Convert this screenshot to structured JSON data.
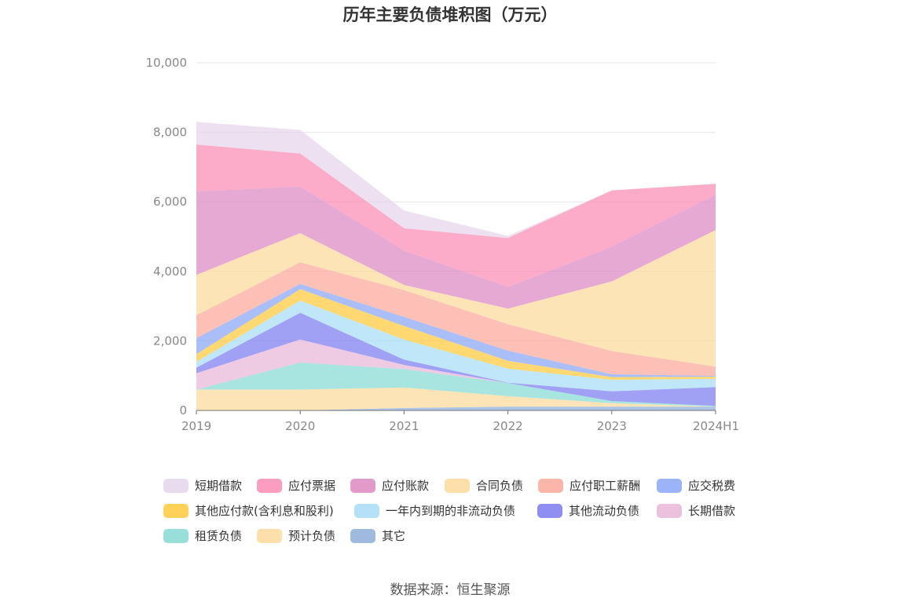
{
  "chart_data": {
    "type": "area",
    "stacked": true,
    "title": "历年主要负债堆积图（万元）",
    "categories": [
      "2019",
      "2020",
      "2021",
      "2022",
      "2023",
      "2024H1"
    ],
    "ylim": [
      0,
      10000
    ],
    "yticks": [
      "0",
      "2,000",
      "4,000",
      "6,000",
      "8,000",
      "10,000"
    ],
    "ytick_values": [
      0,
      2000,
      4000,
      6000,
      8000,
      10000
    ],
    "grid": true,
    "legend_position": "bottom",
    "series": [
      {
        "name": "其它",
        "color": "#8fadd9",
        "values": [
          0,
          0,
          70,
          110,
          110,
          110
        ]
      },
      {
        "name": "预计负债",
        "color": "#fcd99a",
        "values": [
          600,
          600,
          590,
          300,
          100,
          0
        ]
      },
      {
        "name": "租赁负债",
        "color": "#86d9d4",
        "values": [
          0,
          780,
          530,
          380,
          60,
          20
        ]
      },
      {
        "name": "长期借款",
        "color": "#e8b6d8",
        "values": [
          470,
          660,
          120,
          0,
          0,
          0
        ]
      },
      {
        "name": "其他流动负债",
        "color": "#7b7bf0",
        "values": [
          160,
          770,
          150,
          10,
          280,
          540
        ]
      },
      {
        "name": "一年内到期的非流动负债",
        "color": "#a8dcf7",
        "values": [
          170,
          350,
          580,
          400,
          330,
          240
        ]
      },
      {
        "name": "其他应付款(含利息和股利)",
        "color": "#ffc93c",
        "values": [
          220,
          330,
          390,
          230,
          80,
          60
        ]
      },
      {
        "name": "应交税费",
        "color": "#89a6f7",
        "values": [
          460,
          150,
          260,
          290,
          80,
          20
        ]
      },
      {
        "name": "应付职工薪酬",
        "color": "#fca89a",
        "values": [
          660,
          620,
          770,
          760,
          670,
          270
        ]
      },
      {
        "name": "合同负债",
        "color": "#fcd99a",
        "values": [
          1160,
          840,
          150,
          450,
          2000,
          3930
        ]
      },
      {
        "name": "应付账款",
        "color": "#dd88c2",
        "values": [
          2400,
          1340,
          990,
          620,
          1000,
          1010
        ]
      },
      {
        "name": "应付票据",
        "color": "#fb8bb4",
        "values": [
          1350,
          950,
          640,
          1410,
          1620,
          320
        ]
      },
      {
        "name": "短期借款",
        "color": "#e4d4ec",
        "values": [
          650,
          680,
          510,
          60,
          0,
          0
        ]
      }
    ],
    "legend": [
      "短期借款",
      "应付票据",
      "应付账款",
      "合同负债",
      "应付职工薪酬",
      "应交税费",
      "其他应付款(含利息和股利)",
      "一年内到期的非流动负债",
      "其他流动负债",
      "长期借款",
      "租赁负债",
      "预计负债",
      "其它"
    ]
  },
  "source": "数据来源：恒生聚源"
}
